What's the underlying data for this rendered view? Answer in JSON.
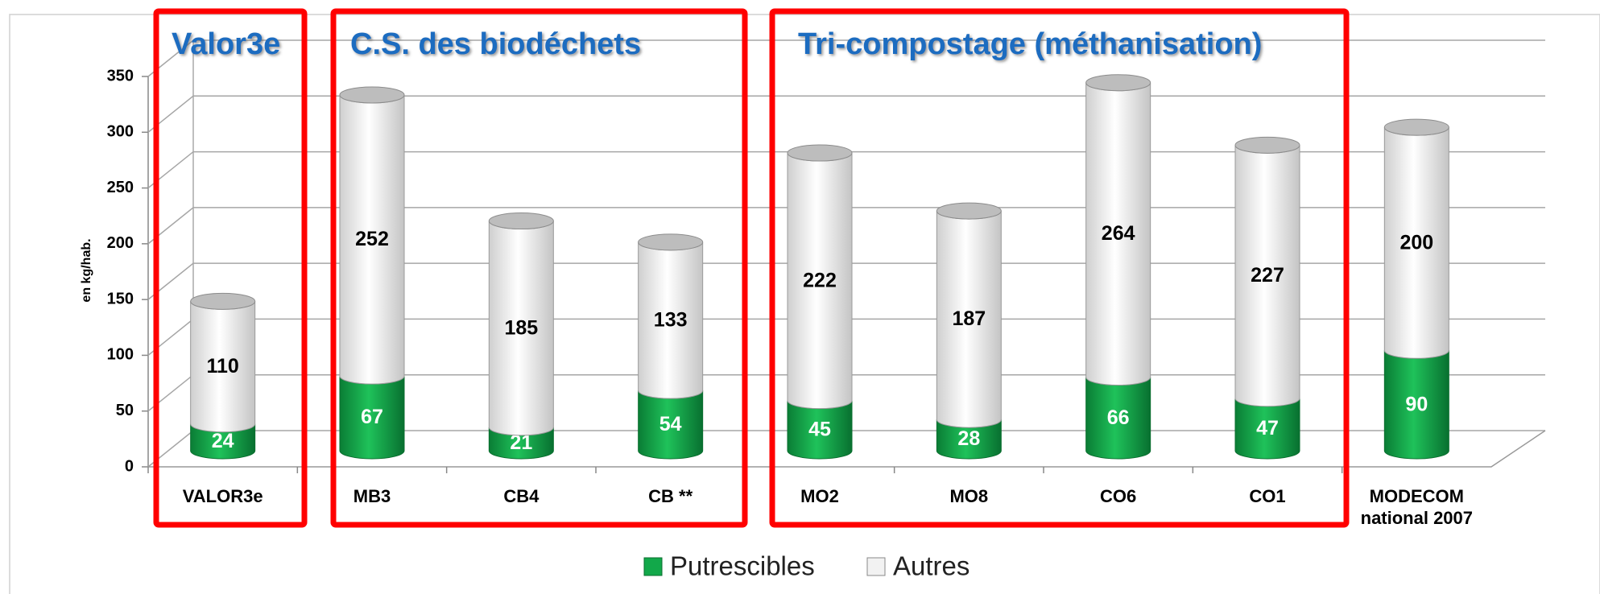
{
  "chart_data": {
    "type": "bar",
    "stacked": true,
    "style": "3d-cylinder",
    "categories": [
      "VALOR3e",
      "MB3",
      "CB4",
      "CB **",
      "MO2",
      "MO8",
      "CO6",
      "CO1",
      "MODECOM national 2007"
    ],
    "series": [
      {
        "name": "Putrescibles",
        "color": "#12a84a",
        "values": [
          24,
          67,
          21,
          54,
          45,
          28,
          66,
          47,
          90
        ]
      },
      {
        "name": "Autres",
        "color": "#f2f2f2",
        "values": [
          110,
          252,
          185,
          133,
          222,
          187,
          264,
          227,
          200
        ]
      }
    ],
    "y_label": "en kg/hab.",
    "ylim": [
      0,
      350
    ],
    "yticks": [
      0,
      50,
      100,
      150,
      200,
      250,
      300,
      350
    ],
    "grid": true,
    "legend": "bottom",
    "annotations": [
      "Valor3e",
      "C.S. des biodéchets",
      "Tri-compostage (méthanisation)"
    ]
  }
}
